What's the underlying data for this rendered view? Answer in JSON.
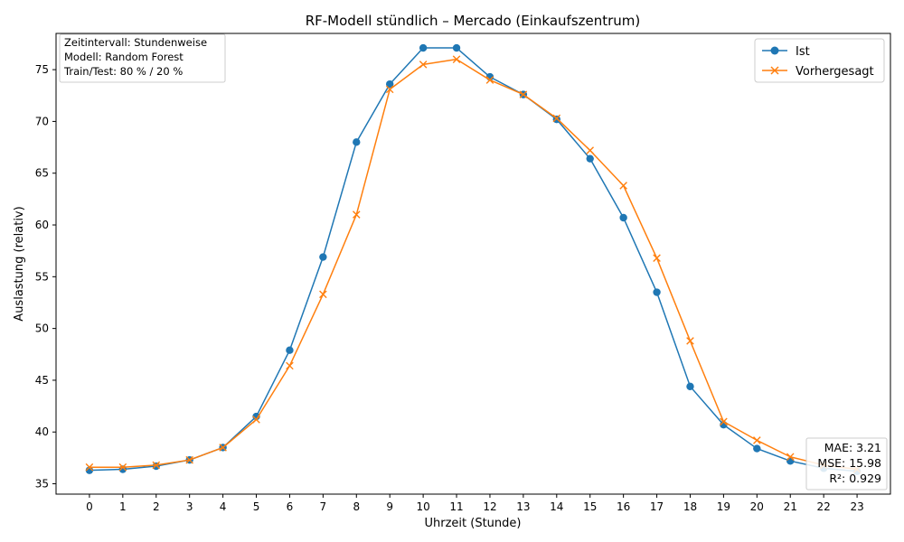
{
  "chart_data": {
    "type": "line",
    "title": "RF-Modell stündlich – Mercado (Einkaufszentrum)",
    "xlabel": "Uhrzeit (Stunde)",
    "ylabel": "Auslastung (relativ)",
    "x": [
      0,
      1,
      2,
      3,
      4,
      5,
      6,
      7,
      8,
      9,
      10,
      11,
      12,
      13,
      14,
      15,
      16,
      17,
      18,
      19,
      20,
      21,
      22,
      23
    ],
    "xlim": [
      -1,
      24
    ],
    "ylim": [
      34,
      78.5
    ],
    "yticks": [
      35,
      40,
      45,
      50,
      55,
      60,
      65,
      70,
      75
    ],
    "grid": false,
    "legend_position": "top-right",
    "series": [
      {
        "name": "Ist",
        "color": "#1f77b4",
        "marker": "circle",
        "values": [
          36.3,
          36.4,
          36.7,
          37.3,
          38.5,
          41.5,
          47.9,
          56.9,
          68.0,
          73.6,
          77.1,
          77.1,
          74.3,
          72.6,
          70.2,
          66.4,
          60.7,
          53.5,
          44.4,
          40.7,
          38.4,
          37.2,
          36.5,
          36.2
        ]
      },
      {
        "name": "Vorhergesagt",
        "color": "#ff7f0e",
        "marker": "x",
        "values": [
          36.6,
          36.6,
          36.8,
          37.3,
          38.5,
          41.2,
          46.4,
          53.3,
          61.0,
          73.1,
          75.5,
          76.0,
          74.0,
          72.6,
          70.3,
          67.2,
          63.8,
          56.8,
          48.8,
          41.0,
          39.2,
          37.6,
          36.8,
          36.4
        ]
      }
    ],
    "info_box": {
      "lines": [
        "Zeitintervall: Stundenweise",
        "Modell: Random Forest",
        "Train/Test: 80 % / 20 %"
      ]
    },
    "metrics_box": {
      "lines": [
        "MAE: 3.21",
        "MSE: 15.98",
        "R²: 0.929"
      ]
    }
  }
}
